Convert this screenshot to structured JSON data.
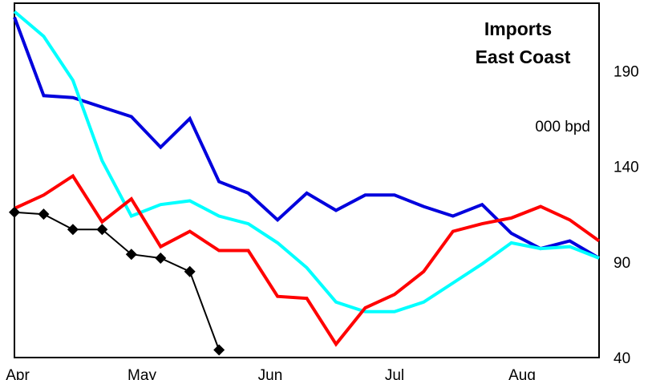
{
  "chart_data": {
    "type": "line",
    "title": [
      "Imports",
      "East Coast"
    ],
    "unit_label": "000 bpd",
    "xlabel": "",
    "ylabel": "",
    "x_tick_labels": [
      "Apr",
      "May",
      "Jun",
      "Jul",
      "Aug"
    ],
    "y_ticks": [
      40,
      90,
      140,
      190
    ],
    "ylim": [
      40,
      222
    ],
    "x": [
      1,
      2,
      3,
      4,
      5,
      6,
      7,
      8,
      9,
      10,
      11,
      12,
      13,
      14,
      15,
      16,
      17,
      18,
      19,
      20,
      21
    ],
    "grid": false,
    "legend": "none",
    "series": [
      {
        "color": "#0000dd",
        "marker": "none",
        "values": [
          218,
          177,
          176,
          171,
          166,
          150,
          165,
          132,
          126,
          112,
          126,
          117,
          125,
          125,
          119,
          114,
          120,
          105,
          97,
          101,
          92
        ]
      },
      {
        "color": "#00ffff",
        "marker": "none",
        "values": [
          221,
          208,
          185,
          143,
          114,
          120,
          122,
          114,
          110,
          100,
          87,
          69,
          64,
          64,
          69,
          79,
          89,
          100,
          97,
          98,
          92
        ]
      },
      {
        "color": "#ff0000",
        "marker": "none",
        "values": [
          118,
          125,
          135,
          111,
          123,
          98,
          106,
          96,
          96,
          72,
          71,
          47,
          66,
          73,
          85,
          106,
          110,
          113,
          119,
          112,
          101
        ]
      },
      {
        "color": "#000000",
        "marker": "diamond",
        "values": [
          116,
          115,
          107,
          107,
          94,
          92,
          85,
          44,
          null,
          null,
          null,
          null,
          null,
          null,
          null,
          null,
          null,
          null,
          null,
          null,
          null
        ]
      }
    ]
  }
}
